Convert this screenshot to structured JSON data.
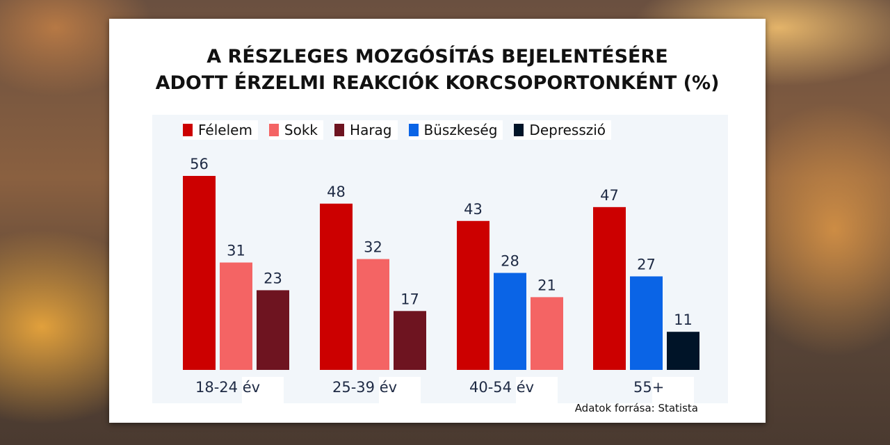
{
  "chart_data": {
    "type": "bar",
    "title": "A RÉSZLEGES MOZGÓSÍTÁS BEJELENTÉSÉRE ADOTT ÉRZELMI REAKCIÓK KORCSOPORTONKÉNT (%)",
    "title_lines": [
      "A RÉSZLEGES MOZGÓSÍTÁS BEJELENTÉSÉRE",
      "ADOTT ÉRZELMI REAKCIÓK KORCSOPORTONKÉNT (%)"
    ],
    "legend": [
      {
        "name": "Félelem",
        "color": "#cc0000"
      },
      {
        "name": "Sokk",
        "color": "#f46464"
      },
      {
        "name": "Harag",
        "color": "#6e1420"
      },
      {
        "name": "Büszkeség",
        "color": "#0a64e6"
      },
      {
        "name": "Depresszió",
        "color": "#001428"
      }
    ],
    "legend_position": "top",
    "categories": [
      "18-24 év",
      "25-39 év",
      "40-54 év",
      "55+"
    ],
    "groups": [
      {
        "category": "18-24 év",
        "bars": [
          {
            "series": "Félelem",
            "value": 56
          },
          {
            "series": "Sokk",
            "value": 31
          },
          {
            "series": "Harag",
            "value": 23
          }
        ]
      },
      {
        "category": "25-39 év",
        "bars": [
          {
            "series": "Félelem",
            "value": 48
          },
          {
            "series": "Sokk",
            "value": 32
          },
          {
            "series": "Harag",
            "value": 17
          }
        ]
      },
      {
        "category": "40-54 év",
        "bars": [
          {
            "series": "Félelem",
            "value": 43
          },
          {
            "series": "Büszkeség",
            "value": 28
          },
          {
            "series": "Sokk",
            "value": 21
          }
        ]
      },
      {
        "category": "55+",
        "bars": [
          {
            "series": "Félelem",
            "value": 47
          },
          {
            "series": "Büszkeség",
            "value": 27
          },
          {
            "series": "Depresszió",
            "value": 11
          }
        ]
      }
    ],
    "xlabel": "",
    "ylabel": "",
    "ylim": [
      0,
      60
    ],
    "grid": false
  },
  "source": "Adatok forrása: Statista"
}
